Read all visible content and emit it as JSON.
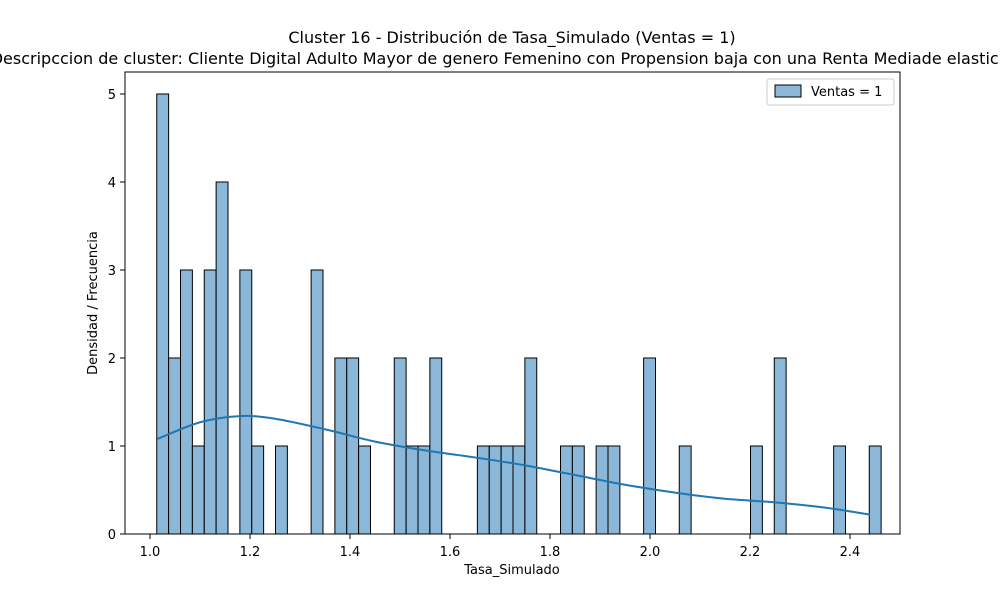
{
  "chart_data": {
    "type": "bar",
    "title": "Cluster 16 - Distribución de Tasa_Simulado (Ventas = 1)",
    "subtitle": "Descripccion de cluster: Cliente Digital Adulto Mayor de genero Femenino con Propension baja con una Renta Mediade elasticidad",
    "xlabel": "Tasa_Simulado",
    "ylabel": "Densidad / Frecuencia",
    "xlim": [
      0.95,
      2.5
    ],
    "ylim": [
      0,
      5.25
    ],
    "xticks": [
      "1.0",
      "1.2",
      "1.4",
      "1.6",
      "1.8",
      "2.0",
      "2.2",
      "2.4"
    ],
    "yticks": [
      "0",
      "1",
      "2",
      "3",
      "4",
      "5"
    ],
    "legend": {
      "label": "Ventas = 1",
      "position": "upper right"
    },
    "bin_start": 1.0135,
    "bin_width": 0.02375,
    "series": [
      {
        "name": "Ventas = 1",
        "counts": [
          5,
          2,
          3,
          1,
          3,
          4,
          0,
          3,
          1,
          0,
          1,
          0,
          0,
          3,
          0,
          2,
          2,
          1,
          0,
          0,
          2,
          1,
          1,
          2,
          0,
          0,
          0,
          1,
          1,
          1,
          1,
          2,
          0,
          0,
          1,
          1,
          0,
          1,
          1,
          0,
          0,
          2,
          0,
          0,
          1,
          0,
          0,
          0,
          0,
          0,
          1,
          0,
          2,
          0,
          0,
          0,
          0,
          1,
          0,
          0,
          1
        ]
      }
    ],
    "kde": {
      "x": [
        1.015,
        1.1,
        1.18,
        1.25,
        1.35,
        1.45,
        1.55,
        1.65,
        1.75,
        1.85,
        1.95,
        2.05,
        2.15,
        2.25,
        2.35,
        2.44
      ],
      "y": [
        1.08,
        1.27,
        1.34,
        1.31,
        1.19,
        1.05,
        0.95,
        0.87,
        0.78,
        0.67,
        0.56,
        0.47,
        0.4,
        0.36,
        0.3,
        0.22
      ]
    },
    "grid": false,
    "colors": {
      "bar_fill": "#8bb7d9",
      "bar_edge": "#000000",
      "kde_line": "#1f77b4"
    }
  }
}
